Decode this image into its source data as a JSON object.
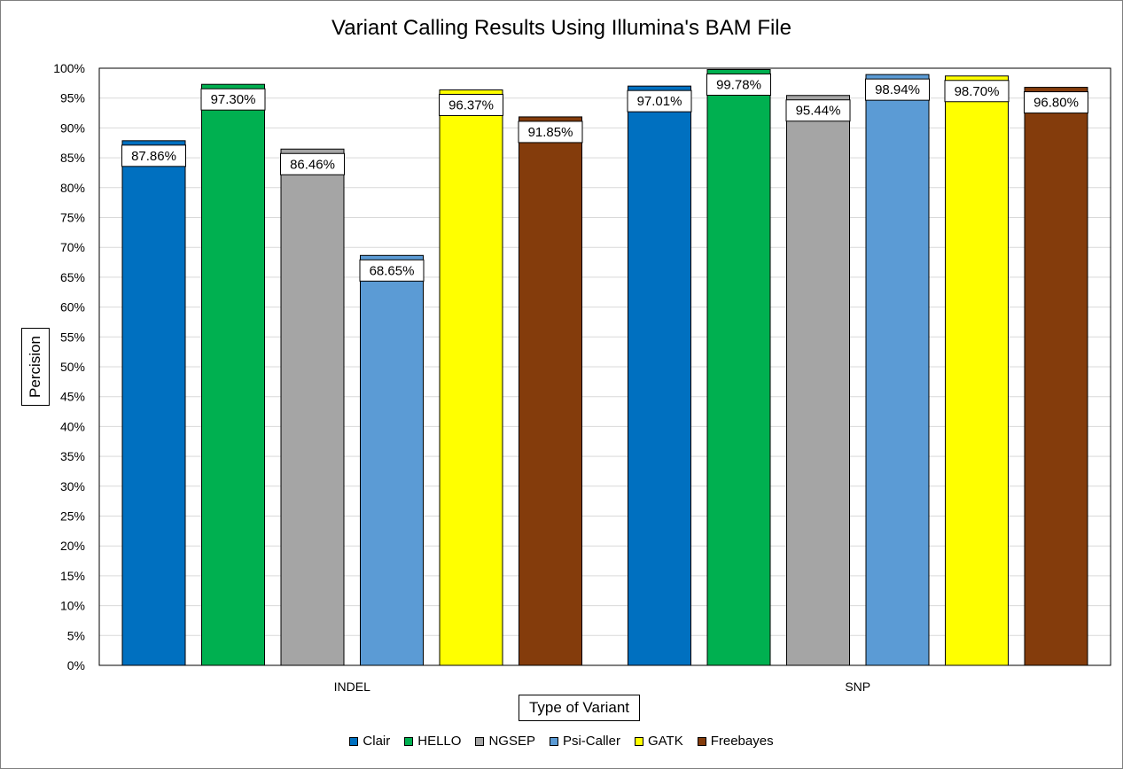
{
  "chart_data": {
    "type": "bar",
    "title": "Variant Calling Results Using Illumina's BAM File",
    "xlabel": "Type of Variant",
    "ylabel": "Percision",
    "categories": [
      "INDEL",
      "SNP"
    ],
    "ylim": [
      0,
      100
    ],
    "ytick_step": 5,
    "ytick_labels": [
      "0%",
      "5%",
      "10%",
      "15%",
      "20%",
      "25%",
      "30%",
      "35%",
      "40%",
      "45%",
      "50%",
      "55%",
      "60%",
      "65%",
      "70%",
      "75%",
      "80%",
      "85%",
      "90%",
      "95%",
      "100%"
    ],
    "grid": true,
    "legend_position": "bottom",
    "series": [
      {
        "name": "Clair",
        "color": "#0070c0",
        "values": [
          87.86,
          97.01
        ],
        "labels": [
          "87.86%",
          "97.01%"
        ]
      },
      {
        "name": "HELLO",
        "color": "#00b050",
        "values": [
          97.3,
          99.78
        ],
        "labels": [
          "97.30%",
          "99.78%"
        ]
      },
      {
        "name": "NGSEP",
        "color": "#a5a5a5",
        "values": [
          86.46,
          95.44
        ],
        "labels": [
          "86.46%",
          "95.44%"
        ]
      },
      {
        "name": "Psi-Caller",
        "color": "#5b9bd5",
        "values": [
          68.65,
          98.94
        ],
        "labels": [
          "68.65%",
          "98.94%"
        ]
      },
      {
        "name": "GATK",
        "color": "#ffff00",
        "values": [
          96.37,
          98.7
        ],
        "labels": [
          "96.37%",
          "98.70%"
        ]
      },
      {
        "name": "Freebayes",
        "color": "#843c0c",
        "values": [
          91.85,
          96.8
        ],
        "labels": [
          "91.85%",
          "96.80%"
        ]
      }
    ]
  }
}
